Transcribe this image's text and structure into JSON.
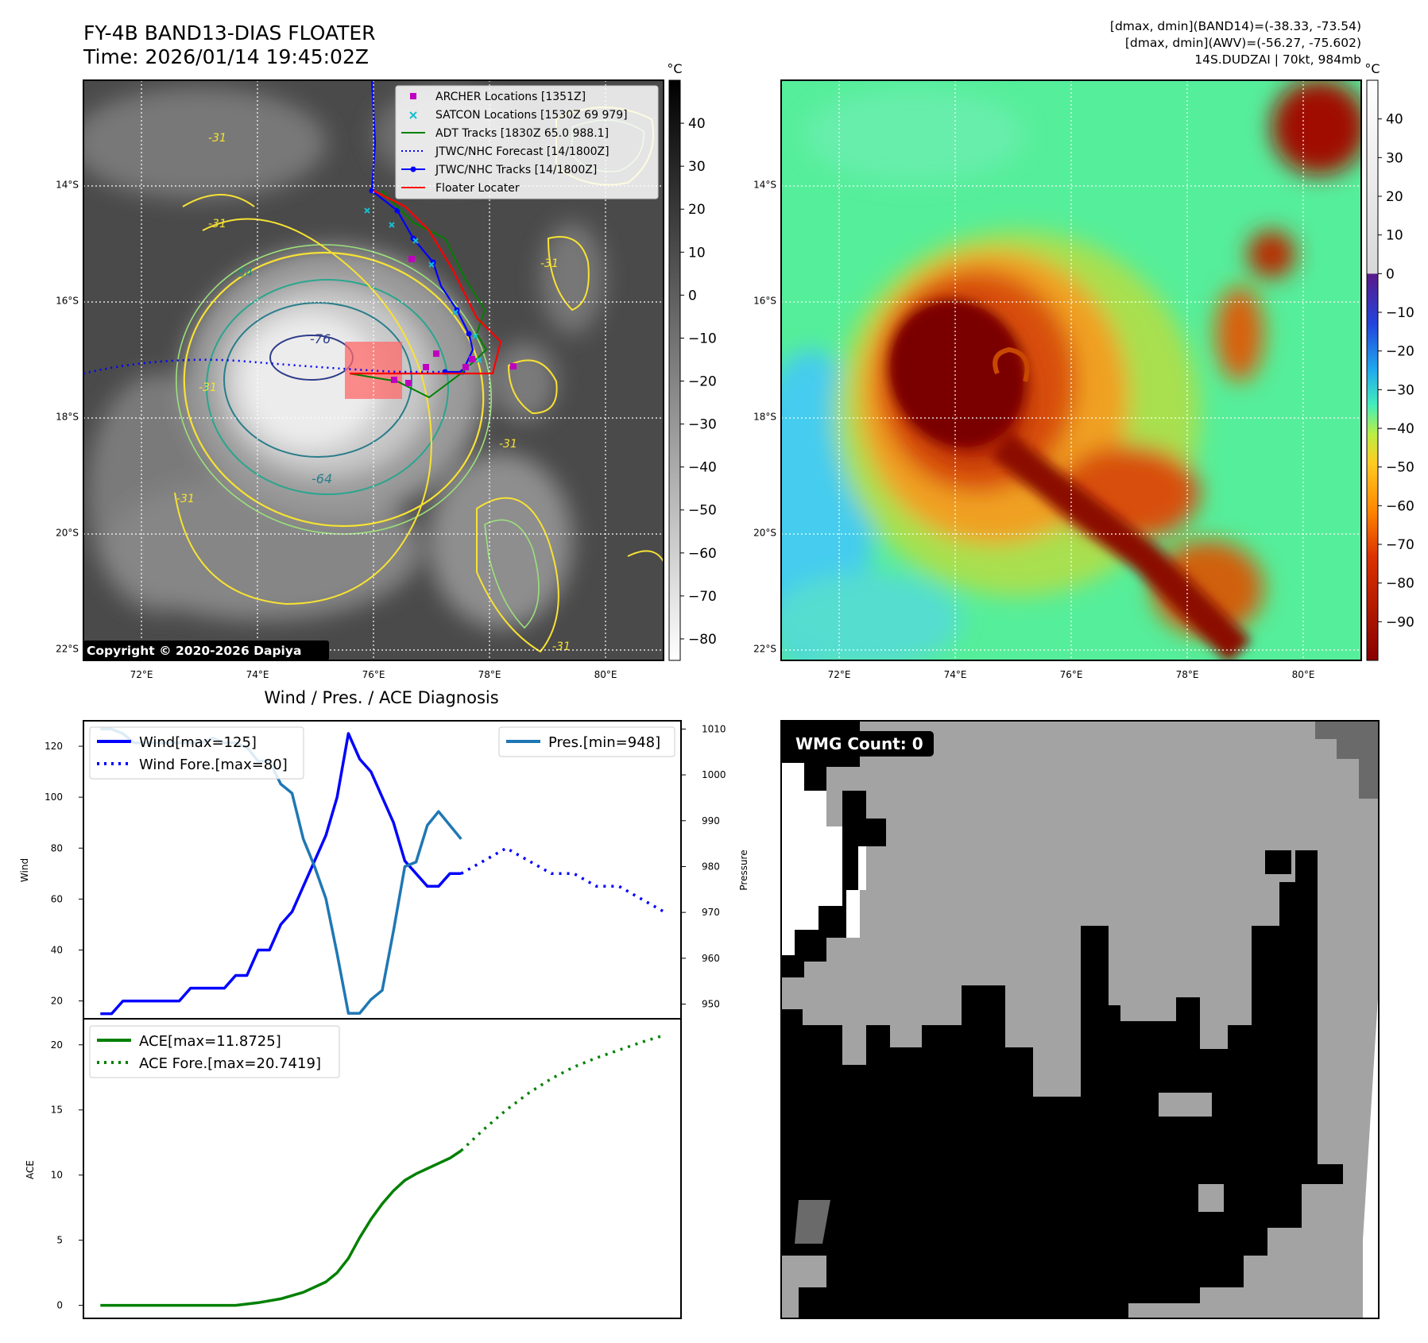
{
  "header": {
    "title": "FY-4B BAND13-DIAS FLOATER",
    "time": "Time: 2026/01/14 19:45:02Z",
    "stats_band14": "[dmax, dmin](BAND14)=(-38.33, -73.54)",
    "stats_awv": "[dmax, dmin](AWV)=(-56.27, -75.602)",
    "storm": "14S.DUDZAI | 70kt, 984mb"
  },
  "map_axes": {
    "lat_labels": [
      "14°S",
      "16°S",
      "18°S",
      "20°S",
      "22°S"
    ],
    "lat_values": [
      -14,
      -16,
      -18,
      -20,
      -22
    ],
    "lon_labels": [
      "72°E",
      "74°E",
      "76°E",
      "78°E",
      "80°E"
    ],
    "lon_values": [
      72,
      74,
      76,
      78,
      80
    ],
    "lon_range": [
      71.0,
      81.0
    ],
    "lat_range": [
      -12.2,
      -22.2
    ],
    "grid": "dotted white"
  },
  "ir_panel": {
    "colorbar_unit": "°C",
    "colorbar_ticks": [
      "40",
      "30",
      "20",
      "10",
      "0",
      "−10",
      "−20",
      "−30",
      "−40",
      "−50",
      "−60",
      "−70",
      "−80"
    ],
    "colorbar_values": [
      40,
      30,
      20,
      10,
      0,
      -10,
      -20,
      -30,
      -40,
      -50,
      -60,
      -70,
      -80
    ],
    "colorbar_range": [
      -85,
      50
    ],
    "contour_labels": [
      "-31",
      "-31",
      "-31",
      "-31",
      "-31",
      "-31",
      "-54",
      "-76",
      "-64",
      "-31"
    ],
    "copyright": "Copyright © 2020-2026 Dapiya",
    "legend": [
      {
        "label": "ARCHER Locations [1351Z]",
        "marker": "square",
        "color": "#c000c0"
      },
      {
        "label": "SATCON Locations [1530Z 69 979]",
        "marker": "x",
        "color": "#17becf"
      },
      {
        "label": "ADT Tracks [1830Z 65.0 988.1]",
        "marker": "line",
        "color": "#008000"
      },
      {
        "label": "JTWC/NHC Forecast [14/1800Z]",
        "marker": "dotted",
        "color": "#0000ff"
      },
      {
        "label": "JTWC/NHC Tracks [14/1800Z]",
        "marker": "line-dot",
        "color": "#0000ff"
      },
      {
        "label": "Floater Locater",
        "marker": "line",
        "color": "#ff0000"
      }
    ]
  },
  "awv_panel": {
    "colorbar_unit": "°C",
    "colorbar_ticks": [
      "40",
      "30",
      "20",
      "10",
      "0",
      "−10",
      "−20",
      "−30",
      "−40",
      "−50",
      "−60",
      "−70",
      "−80",
      "−90"
    ],
    "colorbar_values": [
      40,
      30,
      20,
      10,
      0,
      -10,
      -20,
      -30,
      -40,
      -50,
      -60,
      -70,
      -80,
      -90
    ],
    "colorbar_range": [
      -100,
      50
    ]
  },
  "wmg_panel": {
    "badge": "WMG Count: 0"
  },
  "chart_data": [
    {
      "type": "line",
      "title": "Wind / Pres. / ACE Diagnosis",
      "ylabel": "Wind",
      "ylabel_right": "Pressure",
      "ylim": [
        13,
        130
      ],
      "ylim_right": [
        946.8,
        1011.8
      ],
      "xlim": [
        -1.5,
        51.5
      ],
      "y_ticks": [
        20,
        40,
        60,
        80,
        100,
        120
      ],
      "y_ticks_right": [
        950,
        960,
        970,
        980,
        990,
        1000,
        1010
      ],
      "legend_left": [
        "Wind[max=125]",
        "Wind Fore.[max=80]"
      ],
      "legend_right": [
        "Pres.[min=948]"
      ],
      "series": [
        {
          "name": "Wind[max=125]",
          "color": "#0000ff",
          "style": "solid",
          "x": [
            0,
            1,
            2,
            3,
            4,
            5,
            6,
            7,
            8,
            9,
            10,
            11,
            12,
            13,
            14,
            15,
            16,
            17,
            18,
            19,
            20,
            21,
            22,
            23,
            24,
            25,
            26,
            27,
            28,
            29,
            30,
            31,
            32
          ],
          "values": [
            15,
            15,
            20,
            20,
            20,
            20,
            20,
            20,
            25,
            25,
            25,
            25,
            30,
            30,
            40,
            40,
            50,
            55,
            65,
            75,
            85,
            100,
            125,
            115,
            110,
            100,
            90,
            75,
            70,
            65,
            65,
            70,
            70
          ]
        },
        {
          "name": "Wind Fore.[max=80]",
          "color": "#0000ff",
          "style": "dotted",
          "x": [
            32,
            34,
            36,
            38,
            40,
            42,
            44,
            46,
            48,
            50
          ],
          "values": [
            70,
            75,
            80,
            75,
            70,
            70,
            65,
            65,
            60,
            55
          ]
        },
        {
          "name": "Pres.[min=948]",
          "color": "#1f77b4",
          "style": "solid",
          "axis": "right",
          "x": [
            0,
            1,
            2,
            3,
            4,
            5,
            6,
            7,
            8,
            9,
            10,
            11,
            12,
            13,
            14,
            15,
            16,
            17,
            18,
            19,
            20,
            21,
            22,
            23,
            24,
            25,
            26,
            27,
            28,
            29,
            30,
            31,
            32
          ],
          "values": [
            1010,
            1010,
            1009,
            1007,
            1007,
            1007,
            1007,
            1007,
            1007,
            1007,
            1008,
            1007,
            1007,
            1006,
            1003,
            1003,
            998,
            996,
            986,
            980,
            973,
            961,
            948,
            948,
            951,
            953,
            966,
            980,
            981,
            989,
            992,
            989,
            986
          ]
        }
      ]
    },
    {
      "type": "line",
      "ylabel": "ACE",
      "ylim": [
        -1,
        22
      ],
      "xlim": [
        -1.5,
        51.5
      ],
      "y_ticks": [
        0,
        5,
        10,
        15,
        20
      ],
      "legend": [
        "ACE[max=11.8725]",
        "ACE Fore.[max=20.7419]"
      ],
      "series": [
        {
          "name": "ACE[max=11.8725]",
          "color": "#008000",
          "style": "solid",
          "x": [
            0,
            4,
            8,
            12,
            14,
            16,
            18,
            20,
            21,
            22,
            23,
            24,
            25,
            26,
            27,
            28,
            29,
            30,
            31,
            32
          ],
          "values": [
            0,
            0,
            0,
            0,
            0.2,
            0.5,
            1.0,
            1.8,
            2.5,
            3.6,
            5.2,
            6.6,
            7.8,
            8.8,
            9.6,
            10.1,
            10.5,
            10.9,
            11.3,
            11.87
          ]
        },
        {
          "name": "ACE Fore.[max=20.7419]",
          "color": "#008000",
          "style": "dotted",
          "x": [
            32,
            34,
            36,
            38,
            40,
            42,
            44,
            46,
            48,
            50
          ],
          "values": [
            11.87,
            13.5,
            15.0,
            16.3,
            17.4,
            18.3,
            19.0,
            19.6,
            20.2,
            20.74
          ]
        }
      ]
    }
  ]
}
